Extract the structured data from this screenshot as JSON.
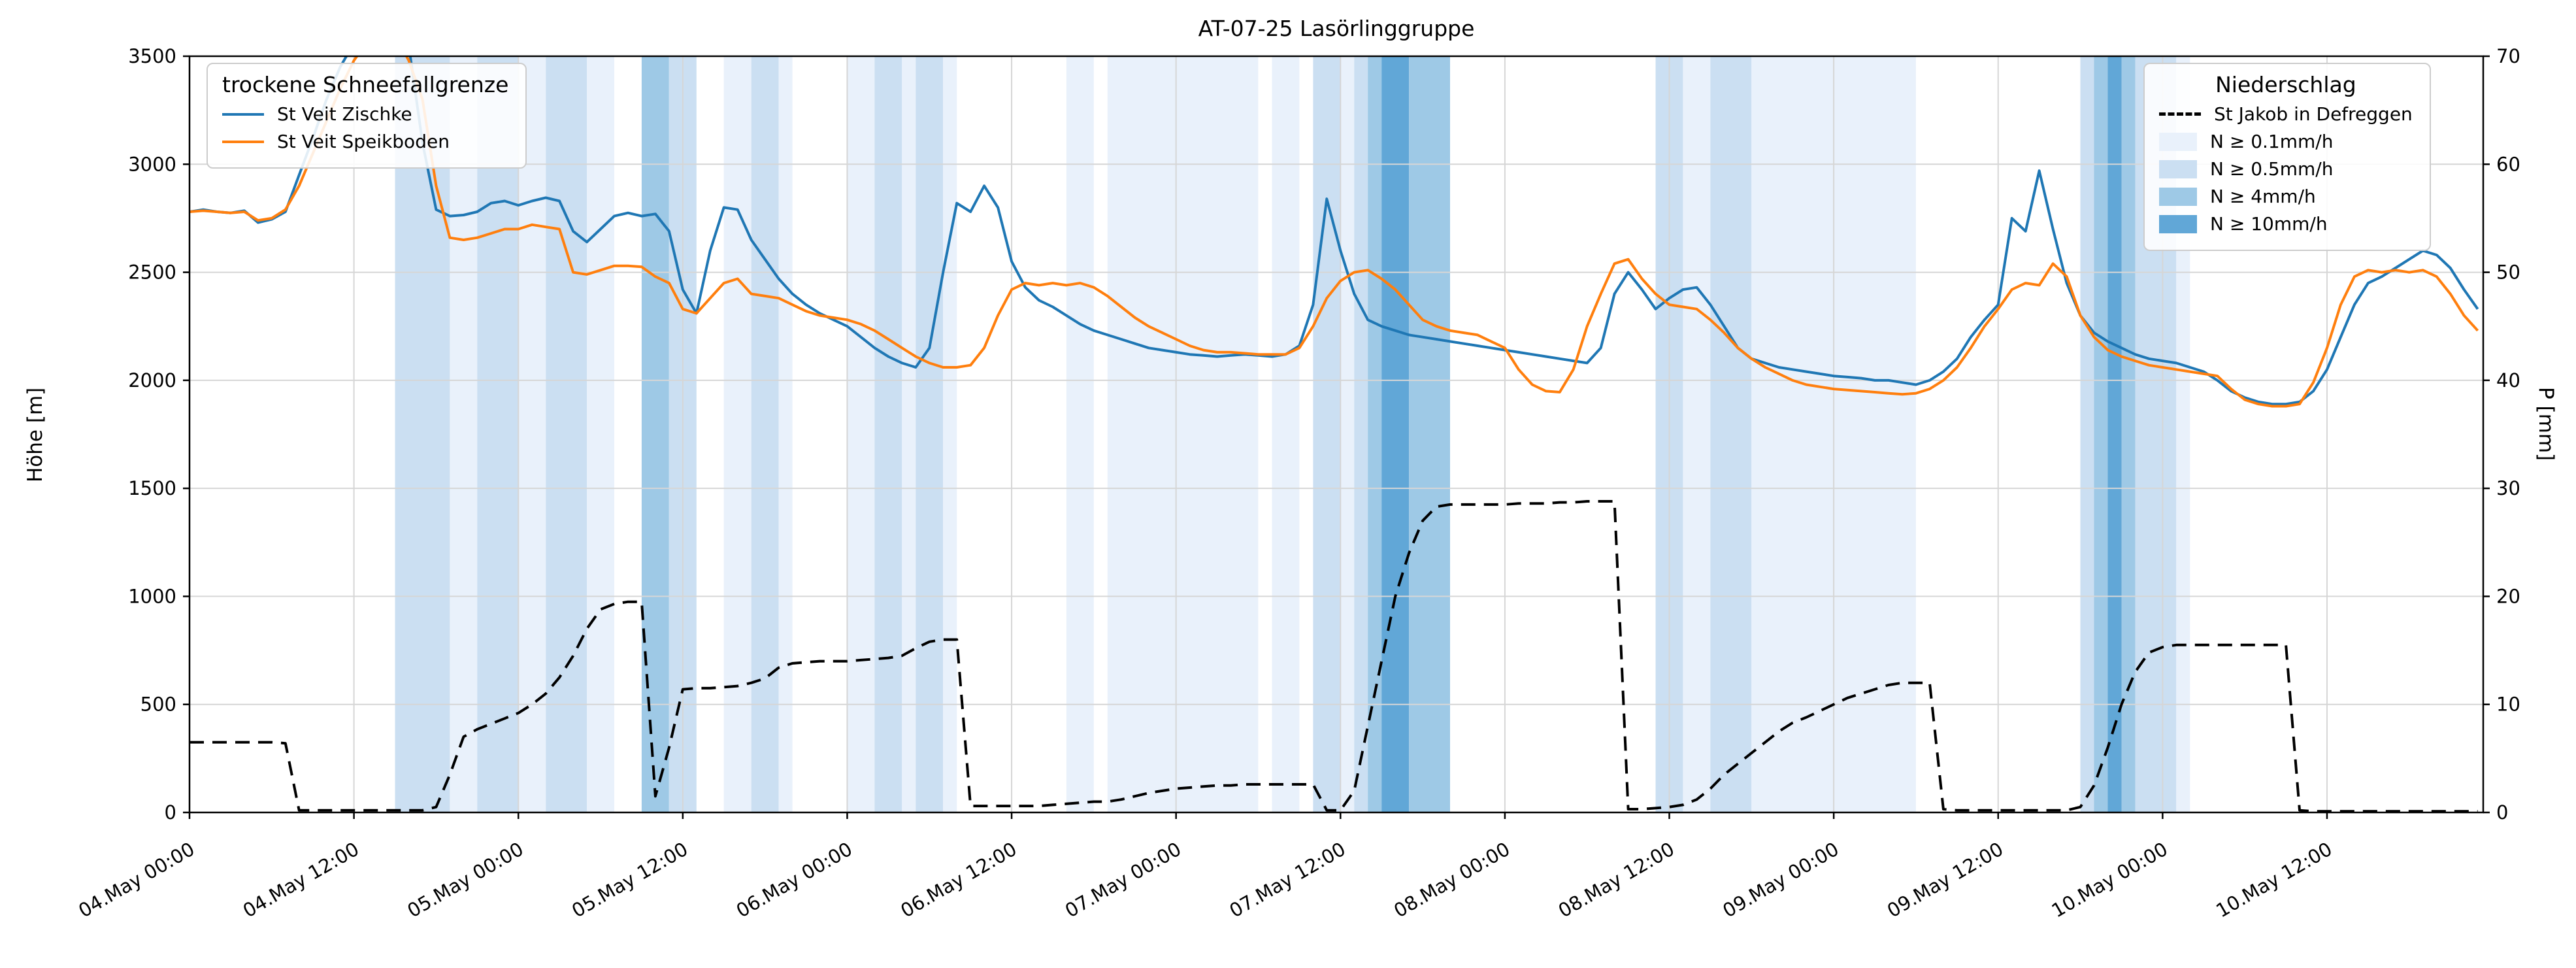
{
  "title": "AT-07-25 Lasörlinggruppe",
  "axes": {
    "y_left_label": "Höhe [m]",
    "y_left_ticks": [
      0,
      500,
      1000,
      1500,
      2000,
      2500,
      3000,
      3500
    ],
    "y_left_range": [
      0,
      3500
    ],
    "y_right_label": "P [mm]",
    "y_right_ticks": [
      0,
      10,
      20,
      30,
      40,
      50,
      60,
      70
    ],
    "y_right_range": [
      0,
      70
    ],
    "x_ticks": [
      "04.May 00:00",
      "04.May 12:00",
      "05.May 00:00",
      "05.May 12:00",
      "06.May 00:00",
      "06.May 12:00",
      "07.May 00:00",
      "07.May 12:00",
      "08.May 00:00",
      "08.May 12:00",
      "09.May 00:00",
      "09.May 12:00",
      "10.May 00:00",
      "10.May 12:00"
    ],
    "x_tick_interval_hours": 12,
    "x_range_hours": [
      0,
      167.4
    ]
  },
  "legend_snowline": {
    "title": "trockene Schneefallgrenze",
    "items": [
      {
        "label": "St Veit Zischke",
        "color": "#1f77b4"
      },
      {
        "label": "St Veit Speikboden",
        "color": "#ff7f0e"
      }
    ]
  },
  "legend_precip": {
    "title": "Niederschlag",
    "line_item": {
      "label": "St Jakob in Defreggen",
      "color": "#000000",
      "style": "dashed"
    },
    "classes": [
      {
        "label": "N ≥ 0.1mm/h",
        "color": "#e9f1fb"
      },
      {
        "label": "N ≥ 0.5mm/h",
        "color": "#cbdff2"
      },
      {
        "label": "N ≥ 4mm/h",
        "color": "#9ec9e6"
      },
      {
        "label": "N ≥ 10mm/h",
        "color": "#61a7d7"
      }
    ]
  },
  "chart_data": {
    "type": "line",
    "x_start": "04.May 00:00",
    "x_step_hours": 1,
    "grid": true,
    "series": [
      {
        "name": "St Veit Zischke",
        "color": "#1f77b4",
        "style": "solid",
        "axis": "left",
        "unit": "m",
        "values": [
          2780,
          2790,
          2780,
          2775,
          2785,
          2730,
          2745,
          2780,
          2950,
          3120,
          3300,
          3450,
          3560,
          3640,
          3660,
          3640,
          3550,
          3100,
          2790,
          2760,
          2765,
          2780,
          2820,
          2830,
          2810,
          2830,
          2845,
          2830,
          2690,
          2640,
          2700,
          2760,
          2775,
          2760,
          2770,
          2690,
          2420,
          2310,
          2600,
          2800,
          2790,
          2650,
          2560,
          2470,
          2400,
          2350,
          2310,
          2280,
          2250,
          2200,
          2150,
          2110,
          2080,
          2060,
          2150,
          2500,
          2820,
          2780,
          2900,
          2800,
          2550,
          2430,
          2370,
          2340,
          2300,
          2260,
          2230,
          2210,
          2190,
          2170,
          2150,
          2140,
          2130,
          2120,
          2115,
          2110,
          2115,
          2120,
          2115,
          2110,
          2120,
          2160,
          2350,
          2840,
          2600,
          2400,
          2280,
          2250,
          2230,
          2210,
          2200,
          2190,
          2180,
          2170,
          2160,
          2150,
          2140,
          2130,
          2120,
          2110,
          2100,
          2090,
          2080,
          2150,
          2400,
          2500,
          2420,
          2330,
          2380,
          2420,
          2430,
          2350,
          2250,
          2150,
          2100,
          2080,
          2060,
          2050,
          2040,
          2030,
          2020,
          2015,
          2010,
          2000,
          2000,
          1990,
          1980,
          2000,
          2040,
          2100,
          2200,
          2280,
          2350,
          2750,
          2690,
          2970,
          2700,
          2450,
          2300,
          2220,
          2180,
          2150,
          2120,
          2100,
          2090,
          2080,
          2060,
          2040,
          2000,
          1950,
          1920,
          1900,
          1890,
          1890,
          1900,
          1950,
          2050,
          2200,
          2350,
          2450,
          2480,
          2520,
          2560,
          2600,
          2580,
          2520,
          2420,
          2330
        ]
      },
      {
        "name": "St Veit Speikboden",
        "color": "#ff7f0e",
        "style": "solid",
        "axis": "left",
        "unit": "m",
        "values": [
          2780,
          2785,
          2780,
          2775,
          2780,
          2740,
          2750,
          2790,
          2900,
          3050,
          3200,
          3350,
          3480,
          3570,
          3620,
          3600,
          3480,
          3300,
          2900,
          2660,
          2650,
          2660,
          2680,
          2700,
          2700,
          2720,
          2710,
          2700,
          2500,
          2490,
          2510,
          2530,
          2530,
          2525,
          2480,
          2450,
          2330,
          2310,
          2380,
          2450,
          2470,
          2400,
          2390,
          2380,
          2350,
          2320,
          2300,
          2290,
          2280,
          2260,
          2230,
          2190,
          2150,
          2110,
          2080,
          2060,
          2060,
          2070,
          2150,
          2300,
          2420,
          2450,
          2440,
          2450,
          2440,
          2450,
          2430,
          2390,
          2340,
          2290,
          2250,
          2220,
          2190,
          2160,
          2140,
          2130,
          2130,
          2125,
          2120,
          2120,
          2120,
          2150,
          2250,
          2380,
          2460,
          2500,
          2510,
          2470,
          2420,
          2350,
          2280,
          2250,
          2230,
          2220,
          2210,
          2180,
          2150,
          2050,
          1980,
          1950,
          1945,
          2050,
          2250,
          2400,
          2540,
          2560,
          2470,
          2400,
          2350,
          2340,
          2330,
          2280,
          2220,
          2150,
          2100,
          2060,
          2030,
          2000,
          1980,
          1970,
          1960,
          1955,
          1950,
          1945,
          1940,
          1935,
          1940,
          1960,
          2000,
          2060,
          2150,
          2250,
          2330,
          2420,
          2450,
          2440,
          2540,
          2480,
          2300,
          2200,
          2140,
          2110,
          2090,
          2070,
          2060,
          2050,
          2040,
          2030,
          2020,
          1960,
          1910,
          1890,
          1880,
          1880,
          1890,
          1990,
          2150,
          2350,
          2480,
          2510,
          2500,
          2510,
          2500,
          2510,
          2480,
          2400,
          2300,
          2230
        ]
      },
      {
        "name": "St Jakob in Defreggen",
        "color": "#000000",
        "style": "dashed",
        "axis": "right",
        "unit": "mm",
        "values": [
          6.5,
          6.5,
          6.5,
          6.5,
          6.5,
          6.5,
          6.5,
          6.4,
          0.2,
          0.2,
          0.2,
          0.2,
          0.2,
          0.2,
          0.2,
          0.2,
          0.2,
          0.2,
          0.5,
          3.5,
          7.0,
          7.7,
          8.2,
          8.7,
          9.2,
          10.0,
          11.0,
          12.5,
          14.5,
          17.0,
          18.8,
          19.3,
          19.5,
          19.5,
          1.5,
          6.0,
          11.4,
          11.5,
          11.5,
          11.6,
          11.7,
          12.0,
          12.4,
          13.4,
          13.8,
          13.9,
          14.0,
          14.0,
          14.0,
          14.1,
          14.2,
          14.3,
          14.5,
          15.2,
          15.8,
          16.0,
          16.0,
          0.6,
          0.6,
          0.6,
          0.6,
          0.6,
          0.6,
          0.7,
          0.8,
          0.9,
          1.0,
          1.0,
          1.2,
          1.5,
          1.8,
          2.0,
          2.2,
          2.3,
          2.4,
          2.5,
          2.5,
          2.6,
          2.6,
          2.6,
          2.6,
          2.6,
          2.6,
          0.2,
          0.2,
          2.0,
          8.0,
          14.0,
          20.0,
          24.0,
          27.0,
          28.3,
          28.5,
          28.5,
          28.5,
          28.5,
          28.5,
          28.6,
          28.6,
          28.6,
          28.7,
          28.7,
          28.8,
          28.8,
          28.8,
          0.3,
          0.3,
          0.4,
          0.5,
          0.7,
          1.2,
          2.2,
          3.5,
          4.5,
          5.5,
          6.5,
          7.5,
          8.3,
          8.8,
          9.4,
          10.0,
          10.6,
          11.0,
          11.4,
          11.8,
          12.0,
          12.0,
          12.0,
          0.3,
          0.2,
          0.2,
          0.2,
          0.2,
          0.2,
          0.2,
          0.2,
          0.2,
          0.2,
          0.5,
          2.5,
          6.0,
          10.0,
          13.0,
          14.8,
          15.3,
          15.5,
          15.5,
          15.5,
          15.5,
          15.5,
          15.5,
          15.5,
          15.5,
          15.5,
          0.2,
          0.1,
          0.1,
          0.1,
          0.1,
          0.1,
          0.1,
          0.1,
          0.1,
          0.1,
          0.1,
          0.1,
          0.1,
          0.1
        ]
      }
    ],
    "precip_class_per_hour_note": "0=none, 1=N>=0.1mm/h, 2=N>=0.5mm/h, 3=N>=4mm/h, 4=N>=10mm/h",
    "precip_class_per_hour": [
      0,
      0,
      0,
      0,
      0,
      0,
      0,
      0,
      0,
      0,
      0,
      0,
      0,
      0,
      0,
      2,
      2,
      2,
      2,
      1,
      1,
      2,
      2,
      2,
      1,
      1,
      2,
      2,
      2,
      1,
      1,
      0,
      0,
      3,
      3,
      2,
      2,
      0,
      0,
      1,
      1,
      2,
      2,
      1,
      0,
      0,
      0,
      0,
      1,
      1,
      2,
      2,
      1,
      2,
      2,
      1,
      0,
      0,
      0,
      0,
      0,
      0,
      0,
      0,
      1,
      1,
      0,
      1,
      1,
      1,
      1,
      1,
      1,
      1,
      1,
      1,
      1,
      1,
      0,
      1,
      1,
      0,
      2,
      2,
      1,
      2,
      3,
      4,
      4,
      3,
      3,
      3,
      0,
      0,
      0,
      0,
      0,
      0,
      0,
      0,
      0,
      0,
      0,
      0,
      0,
      0,
      0,
      2,
      2,
      1,
      1,
      2,
      2,
      2,
      1,
      1,
      1,
      1,
      1,
      1,
      1,
      1,
      1,
      1,
      1,
      1,
      0,
      0,
      0,
      0,
      0,
      0,
      0,
      0,
      0,
      0,
      0,
      0,
      2,
      3,
      4,
      3,
      2,
      2,
      2,
      1,
      0,
      0,
      0,
      0,
      0,
      0,
      0,
      0,
      0,
      0,
      0,
      0,
      0,
      0,
      0,
      0,
      0,
      0,
      0,
      0,
      0,
      0
    ]
  }
}
